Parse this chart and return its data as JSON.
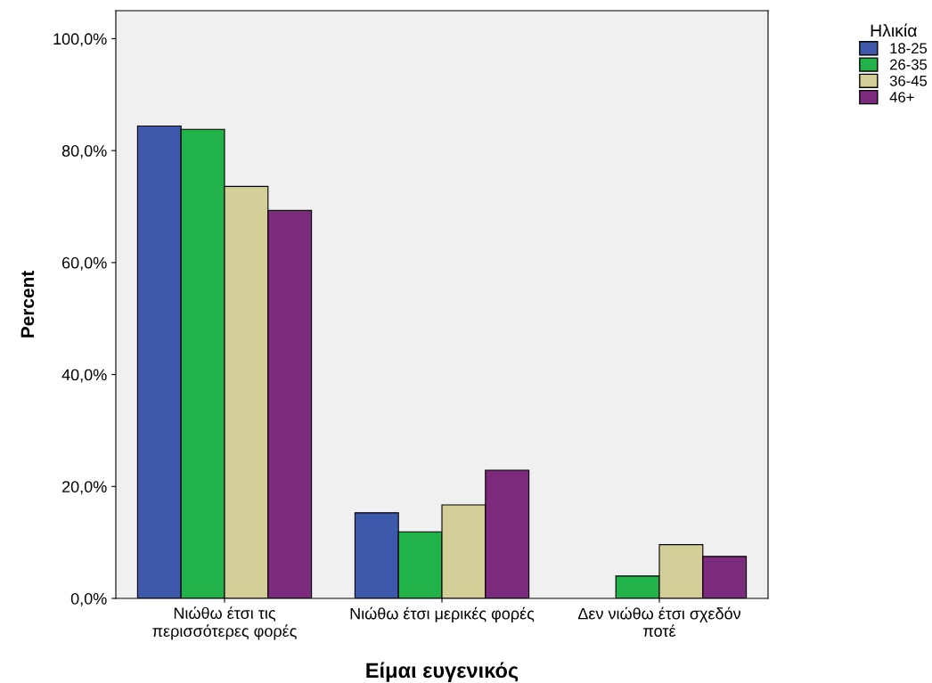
{
  "chart_data": {
    "type": "bar",
    "xlabel": "Είμαι ευγενικός",
    "ylabel": "Percent",
    "legend_title": "Ηλικία",
    "categories": [
      "Νιώθω έτσι τις\nπερισσότερες φορές",
      "Νιώθω έτσι μερικές φορές",
      "Δεν νιώθω έτσι σχεδόν\nποτέ"
    ],
    "series": [
      {
        "name": "18-25",
        "color": "#3e58ac",
        "values": [
          84.4,
          15.3,
          null
        ]
      },
      {
        "name": "26-35",
        "color": "#21b24a",
        "values": [
          83.8,
          11.9,
          4.0
        ]
      },
      {
        "name": "36-45",
        "color": "#d4cf99",
        "values": [
          73.6,
          16.7,
          9.6
        ]
      },
      {
        "name": "46+",
        "color": "#7b2a7c",
        "values": [
          69.3,
          22.9,
          7.5
        ]
      }
    ],
    "ylim": [
      0,
      105
    ],
    "yticks": [
      {
        "value": 0,
        "label": "0,0%"
      },
      {
        "value": 20,
        "label": "20,0%"
      },
      {
        "value": 40,
        "label": "40,0%"
      },
      {
        "value": 60,
        "label": "60,0%"
      },
      {
        "value": 80,
        "label": "80,0%"
      },
      {
        "value": 100,
        "label": "100,0%"
      }
    ],
    "grid": false,
    "legend": "top right"
  }
}
